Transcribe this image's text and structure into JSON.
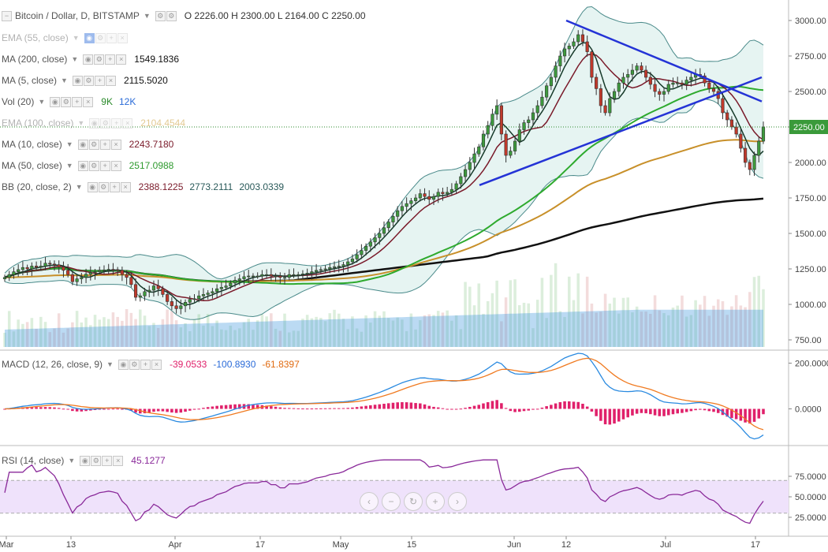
{
  "header": {
    "title": "Bitcoin / Dollar, D, BITSTAMP",
    "ohlc": "O 2226.00 H 2300.00 L 2164.00 C 2250.00"
  },
  "legends": [
    {
      "label": "EMA (55, close)",
      "values": [],
      "faded": true
    },
    {
      "label": "MA (200, close)",
      "values": [
        {
          "t": "1549.1836",
          "c": "#111111"
        }
      ]
    },
    {
      "label": "MA (5, close)",
      "values": [
        {
          "t": "2115.5020",
          "c": "#111111"
        }
      ]
    },
    {
      "label": "Vol (20)",
      "values": [
        {
          "t": "9K",
          "c": "#2a8a2a"
        },
        {
          "t": "12K",
          "c": "#2a6bd8"
        }
      ]
    },
    {
      "label": "EMA (100, close)",
      "values": [
        {
          "t": "2104.4544",
          "c": "#c08a10"
        }
      ],
      "faded": true
    },
    {
      "label": "MA (10, close)",
      "values": [
        {
          "t": "2243.7180",
          "c": "#7a1a2a"
        }
      ]
    },
    {
      "label": "MA (50, close)",
      "values": [
        {
          "t": "2517.0988",
          "c": "#2e9a2e"
        }
      ]
    },
    {
      "label": "BB (20, close, 2)",
      "values": [
        {
          "t": "2388.1225",
          "c": "#7a1a2a"
        },
        {
          "t": "2773.2111",
          "c": "#2a5a5a"
        },
        {
          "t": "2003.0339",
          "c": "#2a5a5a"
        }
      ]
    }
  ],
  "macd_legend": {
    "label": "MACD (12, 26, close, 9)",
    "values": [
      {
        "t": "-39.0533",
        "c": "#e0206a"
      },
      {
        "t": "-100.8930",
        "c": "#2a6bd8"
      },
      {
        "t": "-61.8397",
        "c": "#e06a10"
      }
    ]
  },
  "rsi_legend": {
    "label": "RSI (14, close)",
    "values": [
      {
        "t": "45.1277",
        "c": "#8a2a9a"
      }
    ]
  },
  "nav": [
    "‹",
    "−",
    "↻",
    "+",
    "›"
  ],
  "colors": {
    "up": "#3d9a3d",
    "down": "#c0392b",
    "ma200": "#111111",
    "ma50": "#2eaa2e",
    "ema100": "#c8902a",
    "ma10": "#7a1a2a",
    "ma5": "#163a2a",
    "bb": "#4a8a8a",
    "bbfill": "#e6f4f2",
    "trend": "#2433d6",
    "macd": "#2a8ae0",
    "signal": "#f07a20",
    "hist": "#e0206a",
    "rsi": "#8a2a9a",
    "rsifill": "#efe2fb"
  },
  "chart_data": {
    "type": "candlestick",
    "title": "Bitcoin / Dollar, D, BITSTAMP",
    "x_ticks": [
      "Mar",
      "13",
      "Apr",
      "17",
      "May",
      "15",
      "Jun",
      "12",
      "Jul",
      "17"
    ],
    "price_axis": [
      "3000.00",
      "2750.00",
      "2500.00",
      "2250.00",
      "2000.00",
      "1750.00",
      "1500.00",
      "1250.00",
      "1000.00",
      "750.00"
    ],
    "price_range": [
      700,
      3100
    ],
    "last_price": "2250.00",
    "macd_axis": [
      "200.0000",
      "0.0000"
    ],
    "rsi_axis": [
      "75.0000",
      "50.0000",
      "25.0000"
    ],
    "close": [
      1190,
      1210,
      1230,
      1245,
      1260,
      1250,
      1270,
      1262,
      1270,
      1290,
      1284,
      1278,
      1264,
      1240,
      1210,
      1160,
      1180,
      1190,
      1213,
      1224,
      1230,
      1240,
      1243,
      1247,
      1244,
      1240,
      1210,
      1190,
      1140,
      1050,
      1060,
      1090,
      1100,
      1130,
      1110,
      1070,
      1020,
      990,
      970,
      990,
      1015,
      1035,
      1040,
      1060,
      1070,
      1080,
      1090,
      1110,
      1120,
      1130,
      1150,
      1170,
      1180,
      1195,
      1200,
      1200,
      1200,
      1210,
      1210,
      1200,
      1200,
      1190,
      1190,
      1210,
      1210,
      1210,
      1215,
      1220,
      1230,
      1240,
      1245,
      1250,
      1260,
      1265,
      1270,
      1280,
      1300,
      1320,
      1350,
      1380,
      1410,
      1440,
      1470,
      1500,
      1540,
      1580,
      1620,
      1660,
      1690,
      1710,
      1730,
      1750,
      1780,
      1760,
      1740,
      1760,
      1790,
      1780,
      1790,
      1810,
      1850,
      1900,
      1950,
      2000,
      2060,
      2110,
      2200,
      2260,
      2340,
      2400,
      2200,
      2050,
      2080,
      2150,
      2230,
      2280,
      2300,
      2350,
      2400,
      2460,
      2540,
      2600,
      2680,
      2750,
      2800,
      2820,
      2850,
      2900,
      2850,
      2780,
      2600,
      2520,
      2400,
      2350,
      2450,
      2500,
      2560,
      2600,
      2620,
      2650,
      2680,
      2650,
      2600,
      2550,
      2500,
      2480,
      2500,
      2550,
      2560,
      2560,
      2550,
      2580,
      2600,
      2620,
      2610,
      2560,
      2520,
      2500,
      2450,
      2350,
      2300,
      2250,
      2200,
      2100,
      2000,
      1950,
      2050,
      2150,
      2250
    ]
  }
}
